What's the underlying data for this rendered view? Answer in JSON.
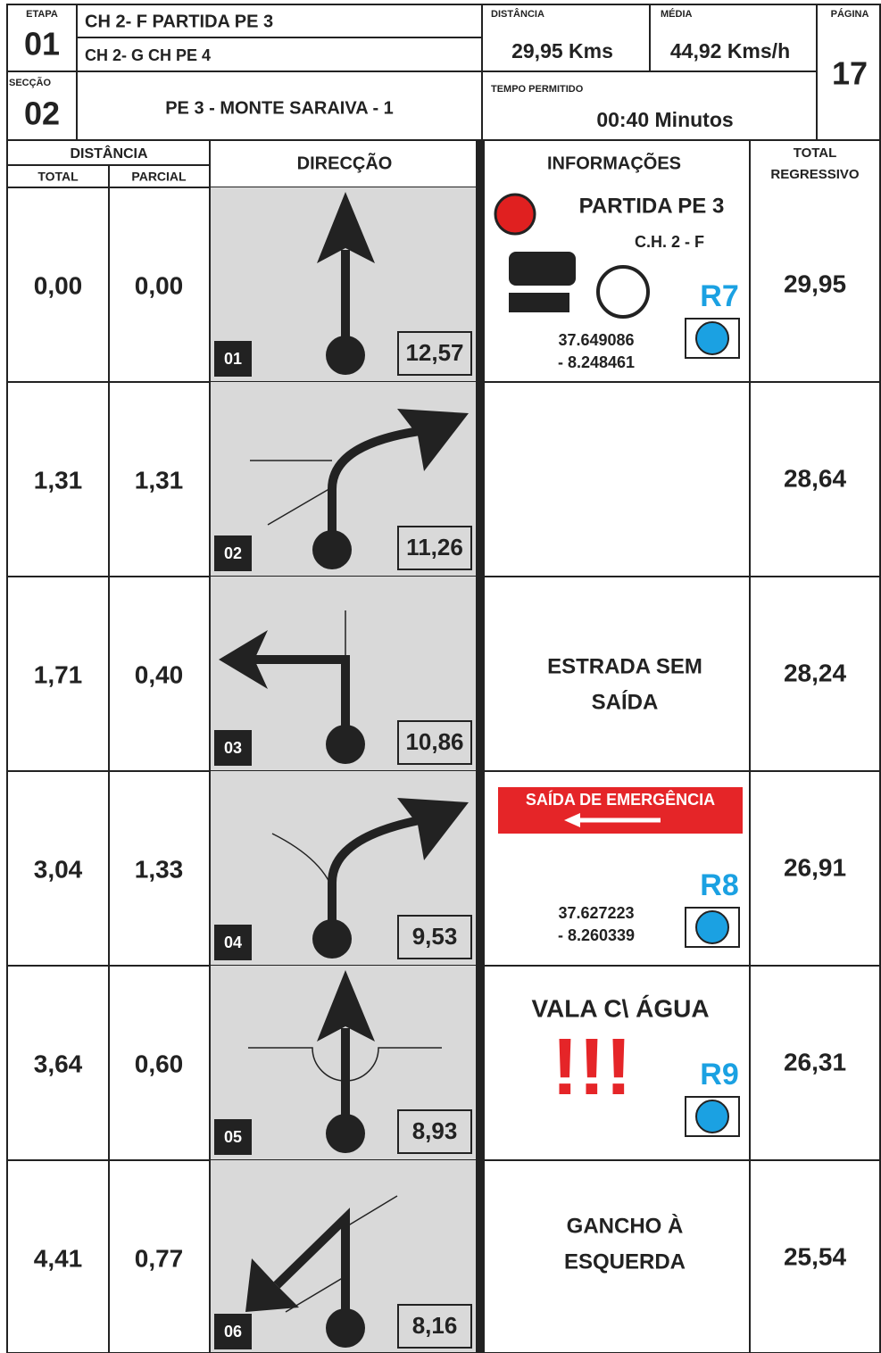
{
  "header": {
    "etapa_label": "ETAPA",
    "etapa": "01",
    "ch1": "CH 2- F PARTIDA PE 3",
    "ch2": "CH 2- G CH PE 4",
    "distancia_label": "DISTÂNCIA",
    "distancia": "29,95 Kms",
    "media_label": "MÉDIA",
    "media": "44,92 Kms/h",
    "pagina_label": "PÁGINA",
    "pagina": "17",
    "seccao_label": "SECÇÃO",
    "seccao": "02",
    "seccao_name": "PE 3 - MONTE SARAIVA - 1",
    "tempo_label": "TEMPO PERMITIDO",
    "tempo": "00:40 Minutos"
  },
  "columns": {
    "distancia": "DISTÂNCIA",
    "total": "TOTAL",
    "parcial": "PARCIAL",
    "direccao": "DIRECÇÃO",
    "informacoes": "INFORMAÇÕES",
    "regressivo": [
      "TOTAL",
      "REGRESSIVO"
    ]
  },
  "rows": [
    {
      "total": "0,00",
      "parcial": "0,00",
      "number": "01",
      "remaining": "12,57",
      "regressivo": "29,95",
      "title": "PARTIDA PE 3",
      "subtitle": "C.H. 2 - F",
      "ref": "R7",
      "coords": [
        "37.649086",
        "- 8.248461"
      ]
    },
    {
      "total": "1,31",
      "parcial": "1,31",
      "number": "02",
      "remaining": "11,26",
      "regressivo": "28,64"
    },
    {
      "total": "1,71",
      "parcial": "0,40",
      "number": "03",
      "remaining": "10,86",
      "regressivo": "28,24",
      "text": [
        "ESTRADA SEM",
        "SAÍDA"
      ]
    },
    {
      "total": "3,04",
      "parcial": "1,33",
      "number": "04",
      "remaining": "9,53",
      "regressivo": "26,91",
      "sign": "SAÍDA DE EMERGÊNCIA",
      "ref": "R8",
      "coords": [
        "37.627223",
        "- 8.260339"
      ]
    },
    {
      "total": "3,64",
      "parcial": "0,60",
      "number": "05",
      "remaining": "8,93",
      "regressivo": "26,31",
      "title": "VALA C\\ ÁGUA",
      "alert": "!!!",
      "ref": "R9"
    },
    {
      "total": "4,41",
      "parcial": "0,77",
      "number": "06",
      "remaining": "8,16",
      "regressivo": "25,54",
      "text": [
        "GANCHO À",
        "ESQUERDA"
      ]
    }
  ]
}
